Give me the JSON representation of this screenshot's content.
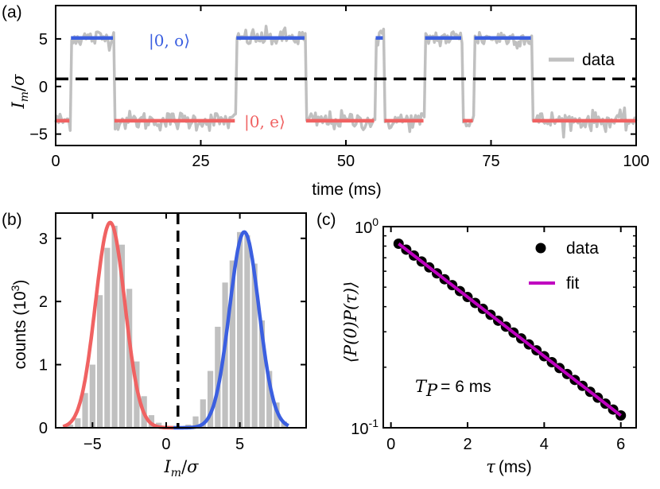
{
  "colors": {
    "odd": "#3b5fe0",
    "even": "#f06262",
    "data": "#c0c0c0",
    "threshold": "#000000",
    "fit": "#c000c0",
    "points": "#000000"
  },
  "chart_data": [
    {
      "panel": "(a)",
      "type": "line",
      "xlabel": "time (ms)",
      "ylabel": "I_m/σ",
      "xlim": [
        0,
        100
      ],
      "ylim": [
        -6.2,
        8.5
      ],
      "xticks": [
        "0",
        "25",
        "50",
        "75",
        "100"
      ],
      "yticks": [
        "−5",
        "0",
        "5"
      ],
      "threshold": 0.8,
      "legend": [
        "data"
      ],
      "state_labels": {
        "odd": "|0, o⟩",
        "even": "|0, e⟩"
      },
      "levels": {
        "odd": 5.1,
        "even": -3.6
      },
      "segments": [
        {
          "state": "even",
          "x": [
            0,
            2.5
          ]
        },
        {
          "state": "odd",
          "x": [
            2.5,
            10
          ]
        },
        {
          "state": "even",
          "x": [
            10,
            31
          ]
        },
        {
          "state": "odd",
          "x": [
            31,
            43
          ]
        },
        {
          "state": "even",
          "x": [
            43,
            55
          ]
        },
        {
          "state": "odd",
          "x": [
            55,
            56.5
          ]
        },
        {
          "state": "even",
          "x": [
            56.5,
            63.5
          ]
        },
        {
          "state": "odd",
          "x": [
            63.5,
            70
          ]
        },
        {
          "state": "even",
          "x": [
            70,
            72
          ]
        },
        {
          "state": "odd",
          "x": [
            72,
            82
          ]
        },
        {
          "state": "even",
          "x": [
            82,
            100
          ]
        }
      ],
      "noise_sigma": 0.9
    },
    {
      "panel": "(b)",
      "type": "bar",
      "xlabel": "I_m/σ",
      "ylabel": "counts (10³)",
      "xlim": [
        -7.5,
        9.5
      ],
      "ylim": [
        0,
        3.4
      ],
      "xticks": [
        "−5",
        "0",
        "5"
      ],
      "yticks": [
        "0",
        "1",
        "2",
        "3"
      ],
      "threshold": 0.8,
      "bin_width": 0.5,
      "histogram": {
        "x": [
          -6.5,
          -6.0,
          -5.5,
          -5.0,
          -4.5,
          -4.0,
          -3.5,
          -3.0,
          -2.5,
          -2.0,
          -1.5,
          -1.0,
          -0.5,
          0.0,
          0.5,
          1.0,
          1.5,
          2.0,
          2.5,
          3.0,
          3.5,
          4.0,
          4.5,
          5.0,
          5.5,
          6.0,
          6.5,
          7.0,
          7.5,
          8.0
        ],
        "values": [
          0.05,
          0.15,
          0.55,
          1.0,
          2.1,
          2.85,
          3.2,
          2.9,
          2.2,
          1.05,
          0.5,
          0.2,
          0.08,
          0.03,
          0.03,
          0.02,
          0.05,
          0.18,
          0.45,
          0.9,
          1.6,
          2.3,
          2.65,
          3.1,
          3.05,
          2.6,
          1.7,
          0.9,
          0.4,
          0.1
        ]
      },
      "fits": [
        {
          "state": "even",
          "mu": -3.8,
          "sigma": 1.0,
          "amplitude": 3.25,
          "x": [
            -7.0,
            0.5
          ]
        },
        {
          "state": "odd",
          "mu": 5.3,
          "sigma": 1.0,
          "amplitude": 3.1,
          "x": [
            0.5,
            8.3
          ]
        }
      ]
    },
    {
      "panel": "(c)",
      "type": "scatter",
      "xlabel": "τ (ms)",
      "ylabel": "⟨P(0)P(τ)⟩",
      "yscale": "log",
      "xlim": [
        -0.2,
        6.4
      ],
      "ylim": [
        0.1,
        1.0
      ],
      "xticks": [
        "0",
        "2",
        "4",
        "6"
      ],
      "ytick_labels": [
        {
          "value": 1.0,
          "base": "10",
          "exp": "0"
        },
        {
          "value": 0.1,
          "base": "10",
          "exp": "-1"
        }
      ],
      "legend": [
        "data",
        "fit"
      ],
      "annotation": {
        "symbol": "T",
        "subscript": "P",
        "text": "= 6 ms"
      },
      "decay_time_ms": 2.95,
      "amplitude": 0.88,
      "x_points": [
        0.2,
        0.4,
        0.6,
        0.8,
        1.0,
        1.2,
        1.4,
        1.6,
        1.8,
        2.0,
        2.2,
        2.4,
        2.6,
        2.8,
        3.0,
        3.2,
        3.4,
        3.6,
        3.8,
        4.0,
        4.2,
        4.4,
        4.6,
        4.8,
        5.0,
        5.2,
        5.4,
        5.6,
        5.8,
        6.0
      ]
    }
  ]
}
